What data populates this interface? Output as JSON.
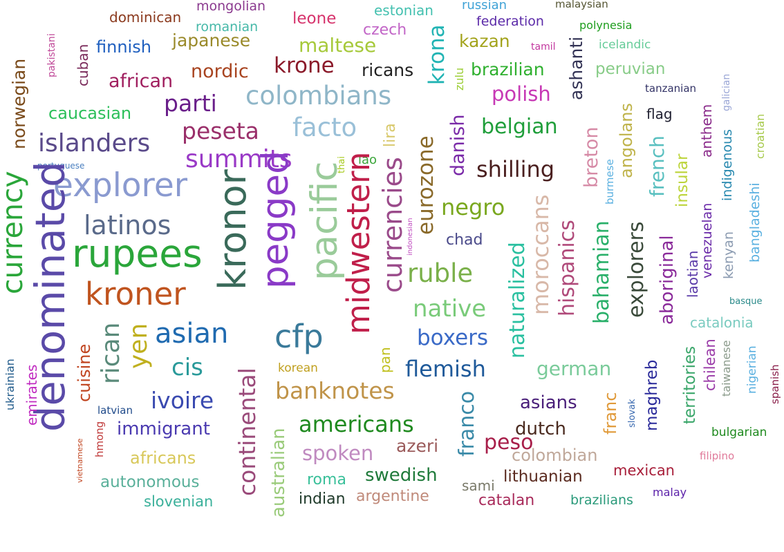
{
  "words": [
    {
      "text": "mongolian",
      "color": "#8b3a8f"
    },
    {
      "text": "dominican",
      "color": "#8b3a1e"
    },
    {
      "text": "leone",
      "color": "#d6336c"
    },
    {
      "text": "estonian",
      "color": "#45c1b0"
    },
    {
      "text": "russian",
      "color": "#3fa2d6"
    },
    {
      "text": "malaysian",
      "color": "#555533"
    },
    {
      "text": "romanian",
      "color": "#45b8a8"
    },
    {
      "text": "czech",
      "color": "#c266c7"
    },
    {
      "text": "federation",
      "color": "#5b2aa8"
    },
    {
      "text": "polynesia",
      "color": "#1f9e1f"
    },
    {
      "text": "pakistani",
      "color": "#c04a99"
    },
    {
      "text": "finnish",
      "color": "#1f5fbf"
    },
    {
      "text": "japanese",
      "color": "#9a8a2a"
    },
    {
      "text": "maltese",
      "color": "#a6c93a"
    },
    {
      "text": "krona",
      "color": "#22b4b4"
    },
    {
      "text": "kazan",
      "color": "#a3a31c"
    },
    {
      "text": "tamil",
      "color": "#c2379e"
    },
    {
      "text": "icelandic",
      "color": "#66cc99"
    },
    {
      "text": "cuban",
      "color": "#7a2a5a"
    },
    {
      "text": "norwegian",
      "color": "#7a4a1a"
    },
    {
      "text": "african",
      "color": "#a01f5f"
    },
    {
      "text": "nordic",
      "color": "#a84420"
    },
    {
      "text": "krone",
      "color": "#8b1a2a"
    },
    {
      "text": "ricans",
      "color": "#222222"
    },
    {
      "text": "zulu",
      "color": "#9acd32"
    },
    {
      "text": "brazilian",
      "color": "#2fb02f"
    },
    {
      "text": "ashanti",
      "color": "#333355"
    },
    {
      "text": "peruvian",
      "color": "#88cc88"
    },
    {
      "text": "tanzanian",
      "color": "#333366"
    },
    {
      "text": "caucasian",
      "color": "#2cbf5a"
    },
    {
      "text": "parti",
      "color": "#6a1f8a"
    },
    {
      "text": "colombians",
      "color": "#8fb6c8"
    },
    {
      "text": "polish",
      "color": "#c739b5"
    },
    {
      "text": "galician",
      "color": "#9aa6d6"
    },
    {
      "text": "flag",
      "color": "#222233"
    },
    {
      "text": "islanders",
      "color": "#5a4a8a"
    },
    {
      "text": "peseta",
      "color": "#9a2f6a"
    },
    {
      "text": "facto",
      "color": "#9ac0d8"
    },
    {
      "text": "lira",
      "color": "#d8c86a"
    },
    {
      "text": "eurozone",
      "color": "#8a6a2a"
    },
    {
      "text": "danish",
      "color": "#7a2aa8"
    },
    {
      "text": "belgian",
      "color": "#1f9e3a"
    },
    {
      "text": "angolans",
      "color": "#bfb34a"
    },
    {
      "text": "anthem",
      "color": "#8a2a8a"
    },
    {
      "text": "croatian",
      "color": "#a6c94a"
    },
    {
      "text": "portuguese",
      "color": "#4a7fbf"
    },
    {
      "text": "summits",
      "color": "#9a3ac7"
    },
    {
      "text": "thai",
      "color": "#a6c91a"
    },
    {
      "text": "lao",
      "color": "#3aa63a"
    },
    {
      "text": "shilling",
      "color": "#4a1f1f"
    },
    {
      "text": "breton",
      "color": "#d68aa6"
    },
    {
      "text": "burmese",
      "color": "#5ab0e0"
    },
    {
      "text": "french",
      "color": "#5ac0c0"
    },
    {
      "text": "insular",
      "color": "#bcd43a"
    },
    {
      "text": "indigenous",
      "color": "#2a8ab0"
    },
    {
      "text": "explorer",
      "color": "#8a9ad0"
    },
    {
      "text": "currency",
      "color": "#2aa63a"
    },
    {
      "text": "kronor",
      "color": "#3a6a5a"
    },
    {
      "text": "pegged",
      "color": "#8a3ac7"
    },
    {
      "text": "pacific",
      "color": "#9acb9a"
    },
    {
      "text": "midwestern",
      "color": "#c01f4a"
    },
    {
      "text": "currencies",
      "color": "#9a4a8a"
    },
    {
      "text": "negro",
      "color": "#7aa81f"
    },
    {
      "text": "bangladeshi",
      "color": "#5ab0e0"
    },
    {
      "text": "latinos",
      "color": "#5a6a8a"
    },
    {
      "text": "denominated",
      "color": "#5a4aa8"
    },
    {
      "text": "rupees",
      "color": "#2aa63a"
    },
    {
      "text": "indonesian",
      "color": "#c04ac0"
    },
    {
      "text": "chad",
      "color": "#4a4a8a"
    },
    {
      "text": "moroccans",
      "color": "#d8b8a8"
    },
    {
      "text": "hispanics",
      "color": "#b04a7a"
    },
    {
      "text": "bahamian",
      "color": "#2ab06a"
    },
    {
      "text": "explorers",
      "color": "#3a4a3a"
    },
    {
      "text": "aboriginal",
      "color": "#8a2a9a"
    },
    {
      "text": "laotian",
      "color": "#5a3aa8"
    },
    {
      "text": "venezuelan",
      "color": "#6a2aa8"
    },
    {
      "text": "kenyan",
      "color": "#8a9ab0"
    },
    {
      "text": "ruble",
      "color": "#7ab04a"
    },
    {
      "text": "naturalized",
      "color": "#2ac0a0"
    },
    {
      "text": "kroner",
      "color": "#c0541f"
    },
    {
      "text": "native",
      "color": "#7acb7a"
    },
    {
      "text": "basque",
      "color": "#2a8a8a"
    },
    {
      "text": "catalonia",
      "color": "#7acbc0"
    },
    {
      "text": "asian",
      "color": "#1f6ab0"
    },
    {
      "text": "cfp",
      "color": "#3a7a9a"
    },
    {
      "text": "boxers",
      "color": "#3a6ac7"
    },
    {
      "text": "yen",
      "color": "#c0b01f"
    },
    {
      "text": "rican",
      "color": "#5a8a7a"
    },
    {
      "text": "cuisine",
      "color": "#c0441f"
    },
    {
      "text": "emirates",
      "color": "#c02ac0"
    },
    {
      "text": "ukrainian",
      "color": "#1f5a8a"
    },
    {
      "text": "cis",
      "color": "#2a9a9a"
    },
    {
      "text": "continental",
      "color": "#9a4a7a"
    },
    {
      "text": "korean",
      "color": "#c0a01f"
    },
    {
      "text": "pan",
      "color": "#c0c01f"
    },
    {
      "text": "flemish",
      "color": "#1f5a9a"
    },
    {
      "text": "german",
      "color": "#7acb9a"
    },
    {
      "text": "maghreb",
      "color": "#2a2a9a"
    },
    {
      "text": "territories",
      "color": "#3aa66a"
    },
    {
      "text": "chilean",
      "color": "#9a3aa8"
    },
    {
      "text": "taiwanese",
      "color": "#8a9a8a"
    },
    {
      "text": "nigerian",
      "color": "#5ab0e0"
    },
    {
      "text": "spanish",
      "color": "#8a1f4a"
    },
    {
      "text": "ivoire",
      "color": "#3a4ab0"
    },
    {
      "text": "banknotes",
      "color": "#c0944a"
    },
    {
      "text": "franco",
      "color": "#3a8aa8"
    },
    {
      "text": "peso",
      "color": "#a81f4a"
    },
    {
      "text": "asians",
      "color": "#4a1f7a"
    },
    {
      "text": "franc",
      "color": "#e09a3a"
    },
    {
      "text": "slovak",
      "color": "#3a6ab0"
    },
    {
      "text": "latvian",
      "color": "#1f4a8a"
    },
    {
      "text": "hmong",
      "color": "#c03a3a"
    },
    {
      "text": "immigrant",
      "color": "#4a3ab0"
    },
    {
      "text": "americans",
      "color": "#1f8a1f"
    },
    {
      "text": "dutch",
      "color": "#4a2a1f"
    },
    {
      "text": "bulgarian",
      "color": "#1f8a1f"
    },
    {
      "text": "vietnamese",
      "color": "#c0441f"
    },
    {
      "text": "africans",
      "color": "#d8c85a"
    },
    {
      "text": "australian",
      "color": "#9acb7a"
    },
    {
      "text": "spoken",
      "color": "#c08ac0"
    },
    {
      "text": "azeri",
      "color": "#9a5a5a"
    },
    {
      "text": "colombian",
      "color": "#c0a89a"
    },
    {
      "text": "filipino",
      "color": "#e07a9a"
    },
    {
      "text": "autonomous",
      "color": "#5ab09a"
    },
    {
      "text": "roma",
      "color": "#3ac09a"
    },
    {
      "text": "swedish",
      "color": "#1f7a3a"
    },
    {
      "text": "sami",
      "color": "#7a7a6a"
    },
    {
      "text": "lithuanian",
      "color": "#5a2a1f"
    },
    {
      "text": "mexican",
      "color": "#a81f3a"
    },
    {
      "text": "slovenian",
      "color": "#3ab09a"
    },
    {
      "text": "indian",
      "color": "#1f3a2a"
    },
    {
      "text": "argentine",
      "color": "#c08a7a"
    },
    {
      "text": "catalan",
      "color": "#a82a5a"
    },
    {
      "text": "brazilians",
      "color": "#2a9a7a"
    },
    {
      "text": "malay",
      "color": "#5a1fa8"
    }
  ]
}
